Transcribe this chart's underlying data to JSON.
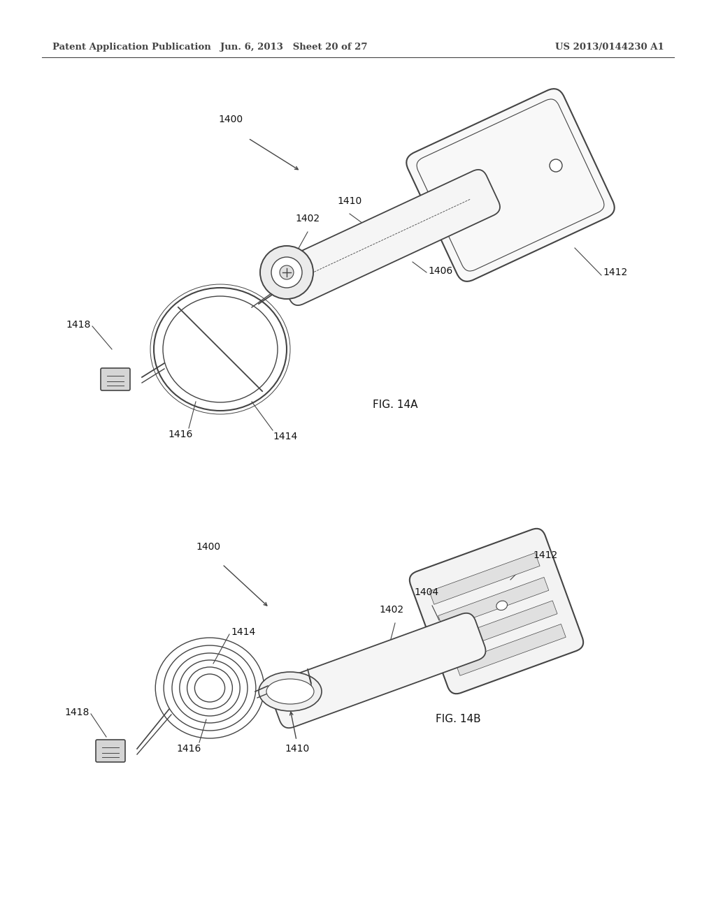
{
  "header_left": "Patent Application Publication",
  "header_mid": "Jun. 6, 2013   Sheet 20 of 27",
  "header_right": "US 2013/0144230 A1",
  "fig_label_A": "FIG. 14A",
  "fig_label_B": "FIG. 14B",
  "bg_color": "#ffffff",
  "line_color": "#444444",
  "label_color": "#111111",
  "header_fontsize": 9.5,
  "label_fontsize": 10,
  "fig_label_fontsize": 11
}
